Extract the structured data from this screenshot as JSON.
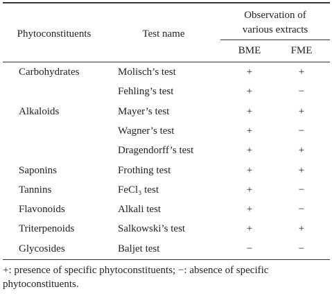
{
  "table": {
    "header": {
      "phytoconstituents": "Phytoconstituents",
      "test_name": "Test name",
      "observation": [
        "Observation of",
        "various extracts"
      ],
      "extracts": [
        "BME",
        "FME"
      ]
    },
    "groups": [
      {
        "name": "Carbohydrates",
        "tests": [
          {
            "name": "Molisch’s test",
            "bme": "+",
            "fme": "+"
          },
          {
            "name": "Fehling’s test",
            "bme": "+",
            "fme": "−"
          }
        ]
      },
      {
        "name": "Alkaloids",
        "tests": [
          {
            "name": "Mayer’s test",
            "bme": "+",
            "fme": "+"
          },
          {
            "name": "Wagner’s test",
            "bme": "+",
            "fme": "−"
          },
          {
            "name": "Dragendorff’s test",
            "bme": "+",
            "fme": "+"
          }
        ]
      },
      {
        "name": "Saponins",
        "tests": [
          {
            "name": "Frothing test",
            "bme": "+",
            "fme": "+"
          }
        ]
      },
      {
        "name": "Tannins",
        "tests": [
          {
            "name": "FeCl₃ test",
            "bme": "+",
            "fme": "−"
          }
        ]
      },
      {
        "name": "Flavonoids",
        "tests": [
          {
            "name": "Alkali test",
            "bme": "+",
            "fme": "−"
          }
        ]
      },
      {
        "name": "Triterpenoids",
        "tests": [
          {
            "name": "Salkowski’s test",
            "bme": "+",
            "fme": "+"
          }
        ]
      },
      {
        "name": "Glycosides",
        "tests": [
          {
            "name": "Baljet test",
            "bme": "−",
            "fme": "−"
          }
        ]
      }
    ],
    "footnote": [
      "+: presence of specific phytoconstituents; −: absence of specific",
      "phytoconstituents."
    ]
  }
}
